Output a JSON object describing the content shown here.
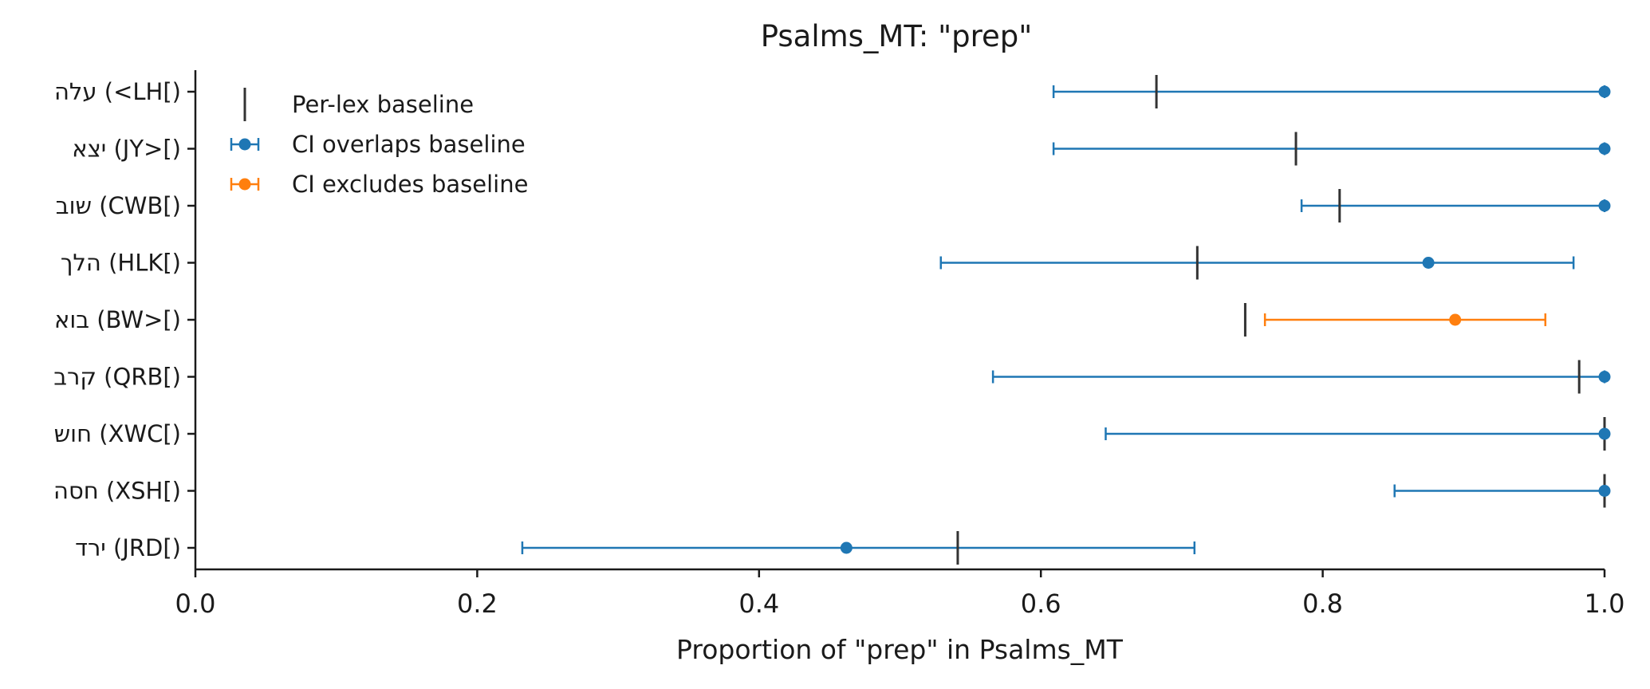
{
  "chart_data": {
    "type": "errorbar",
    "title": "Psalms_MT: \"prep\"",
    "xlabel": "Proportion of \"prep\" in Psalms_MT",
    "ylabel": "",
    "xlim": [
      0.0,
      1.0
    ],
    "xticks": [
      0.0,
      0.2,
      0.4,
      0.6,
      0.8,
      1.0
    ],
    "xtick_labels": [
      "0.0",
      "0.2",
      "0.4",
      "0.6",
      "0.8",
      "1.0"
    ],
    "grid": false,
    "legend_position": "top-left",
    "legend": [
      {
        "key": "baseline",
        "label": "Per-lex baseline",
        "color": "#333333"
      },
      {
        "key": "overlap",
        "label": "CI overlaps baseline",
        "color": "#1f77b4"
      },
      {
        "key": "exclude",
        "label": "CI excludes baseline",
        "color": "#ff7f0e"
      }
    ],
    "rows": [
      {
        "label": "עלה (<LH[)",
        "value": 1.0,
        "ci_low": 0.609,
        "ci_high": 1.0,
        "baseline": 0.682,
        "group": "overlap"
      },
      {
        "label": "יצא (JY>[)",
        "value": 1.0,
        "ci_low": 0.609,
        "ci_high": 1.0,
        "baseline": 0.781,
        "group": "overlap"
      },
      {
        "label": "שוב (CWB[)",
        "value": 1.0,
        "ci_low": 0.785,
        "ci_high": 1.0,
        "baseline": 0.812,
        "group": "overlap"
      },
      {
        "label": "הלך (HLK[)",
        "value": 0.875,
        "ci_low": 0.529,
        "ci_high": 0.978,
        "baseline": 0.711,
        "group": "overlap"
      },
      {
        "label": "בוא (BW>[)",
        "value": 0.894,
        "ci_low": 0.759,
        "ci_high": 0.958,
        "baseline": 0.745,
        "group": "exclude"
      },
      {
        "label": "קרב (QRB[)",
        "value": 1.0,
        "ci_low": 0.566,
        "ci_high": 1.0,
        "baseline": 0.982,
        "group": "overlap"
      },
      {
        "label": "חוש (XWC[)",
        "value": 1.0,
        "ci_low": 0.646,
        "ci_high": 1.0,
        "baseline": 1.0,
        "group": "overlap"
      },
      {
        "label": "חסה (XSH[)",
        "value": 1.0,
        "ci_low": 0.851,
        "ci_high": 1.0,
        "baseline": 1.0,
        "group": "overlap"
      },
      {
        "label": "ירד (JRD[)",
        "value": 0.462,
        "ci_low": 0.232,
        "ci_high": 0.709,
        "baseline": 0.541,
        "group": "overlap"
      }
    ]
  }
}
